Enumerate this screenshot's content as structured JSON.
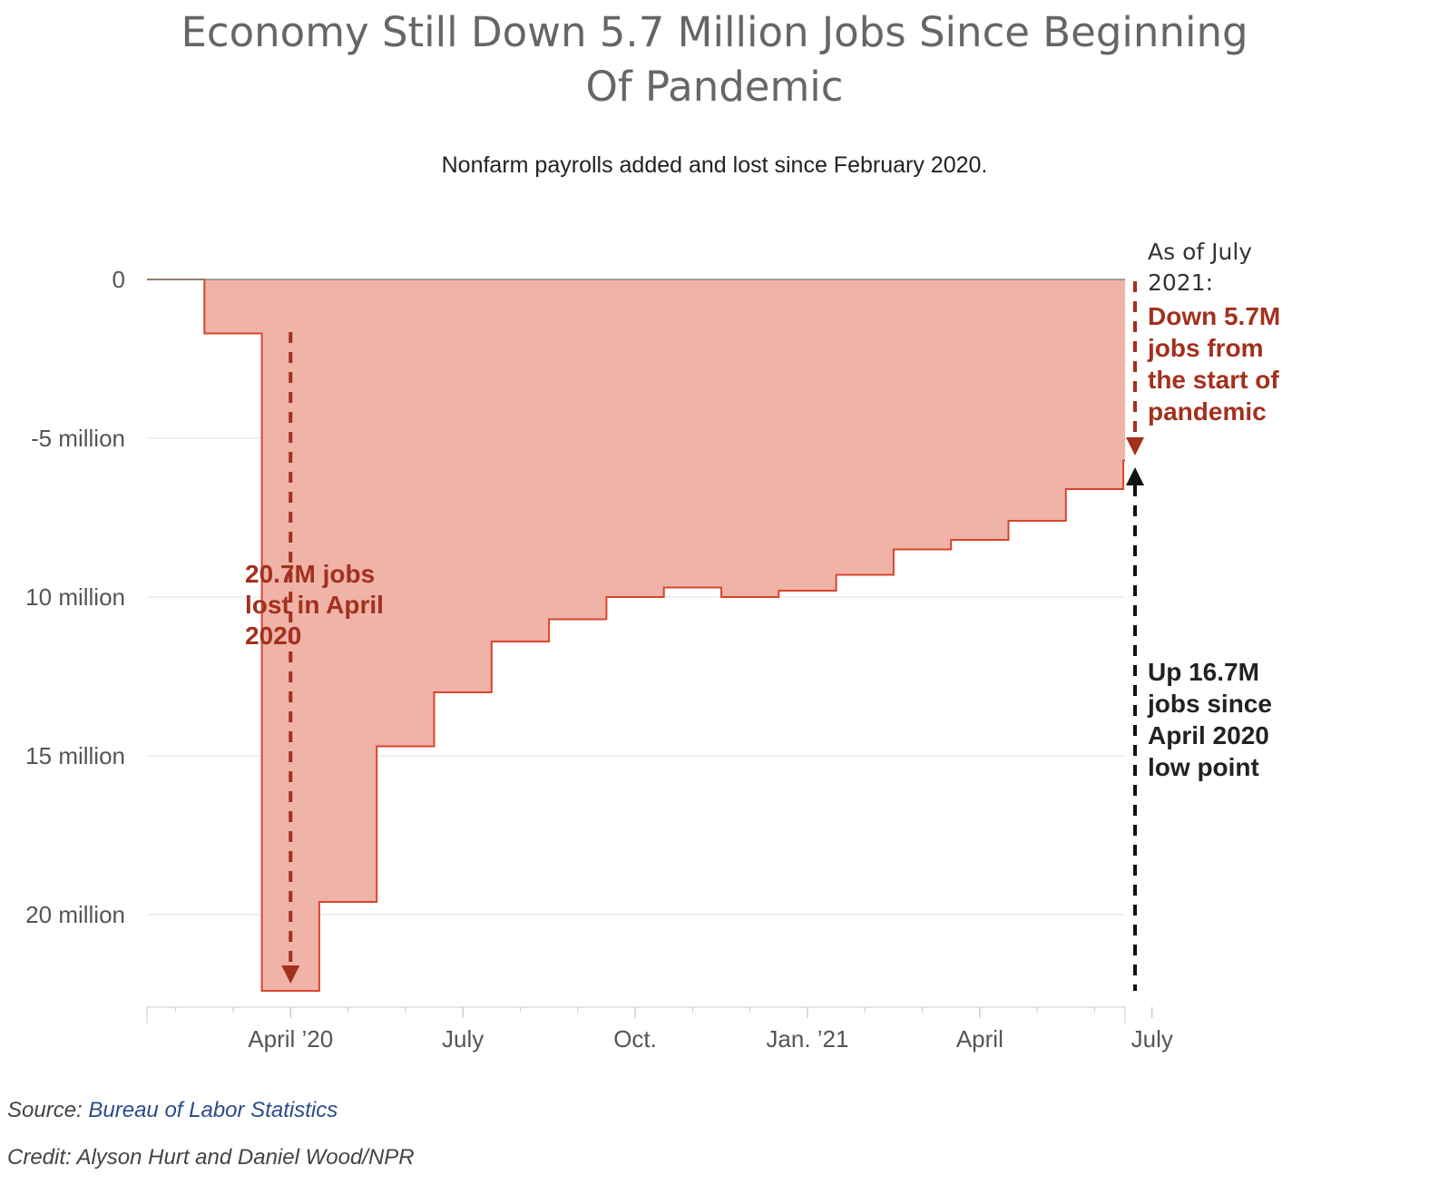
{
  "header": {
    "title_line1": "Economy Still Down 5.7 Million Jobs Since Beginning",
    "title_line2": "Of Pandemic",
    "subtitle": "Nonfarm payrolls added and lost since February 2020."
  },
  "chart_data": {
    "type": "area",
    "step": true,
    "title": "Economy Still Down 5.7 Million Jobs Since Beginning Of Pandemic",
    "subtitle": "Nonfarm payrolls added and lost since February 2020.",
    "xlabel": "",
    "ylabel": "",
    "y_inverted": true,
    "ylim": [
      0,
      23
    ],
    "y_ticks": [
      0,
      5,
      10,
      15,
      20
    ],
    "y_tick_labels": [
      "0",
      "-5 million",
      "10 million",
      "15 million",
      "20 million"
    ],
    "x_tick_labels": [
      "April ’20",
      "July",
      "Oct.",
      "Jan. ’21",
      "April",
      "July"
    ],
    "x_tick_months": [
      "2020-04",
      "2020-07",
      "2020-10",
      "2021-01",
      "2021-04",
      "2021-07"
    ],
    "series": [
      {
        "months": [
          "2020-02",
          "2020-03",
          "2020-04",
          "2020-05",
          "2020-06",
          "2020-07",
          "2020-08",
          "2020-09",
          "2020-10",
          "2020-11",
          "2020-12",
          "2021-01",
          "2021-02",
          "2021-03",
          "2021-04",
          "2021-05",
          "2021-06",
          "2021-07"
        ],
        "values": [
          0,
          1.7,
          22.4,
          19.6,
          14.7,
          13.0,
          11.4,
          10.7,
          10.0,
          9.7,
          10.0,
          9.8,
          9.3,
          8.5,
          8.2,
          7.6,
          6.6,
          5.7
        ],
        "color": "#d9452b",
        "fill": "#efb3a8"
      }
    ],
    "grid": true,
    "annotations": {
      "april": {
        "lines": [
          "20.7M jobs",
          "lost in April",
          "2020"
        ],
        "color": "#a3301d"
      },
      "as_of": {
        "lines": [
          "As of July",
          "2021:"
        ],
        "color": "#333333"
      },
      "down": {
        "lines": [
          "Down 5.7M",
          "jobs from",
          "the start of",
          "pandemic"
        ],
        "color": "#a3301d"
      },
      "up": {
        "lines": [
          "Up 16.7M",
          "jobs since",
          "April 2020",
          "low point"
        ],
        "color": "#222222"
      }
    }
  },
  "footer": {
    "source_label": "Source: ",
    "source_link": "Bureau of Labor Statistics",
    "credit": "Credit: Alyson Hurt and Daniel Wood/NPR"
  }
}
